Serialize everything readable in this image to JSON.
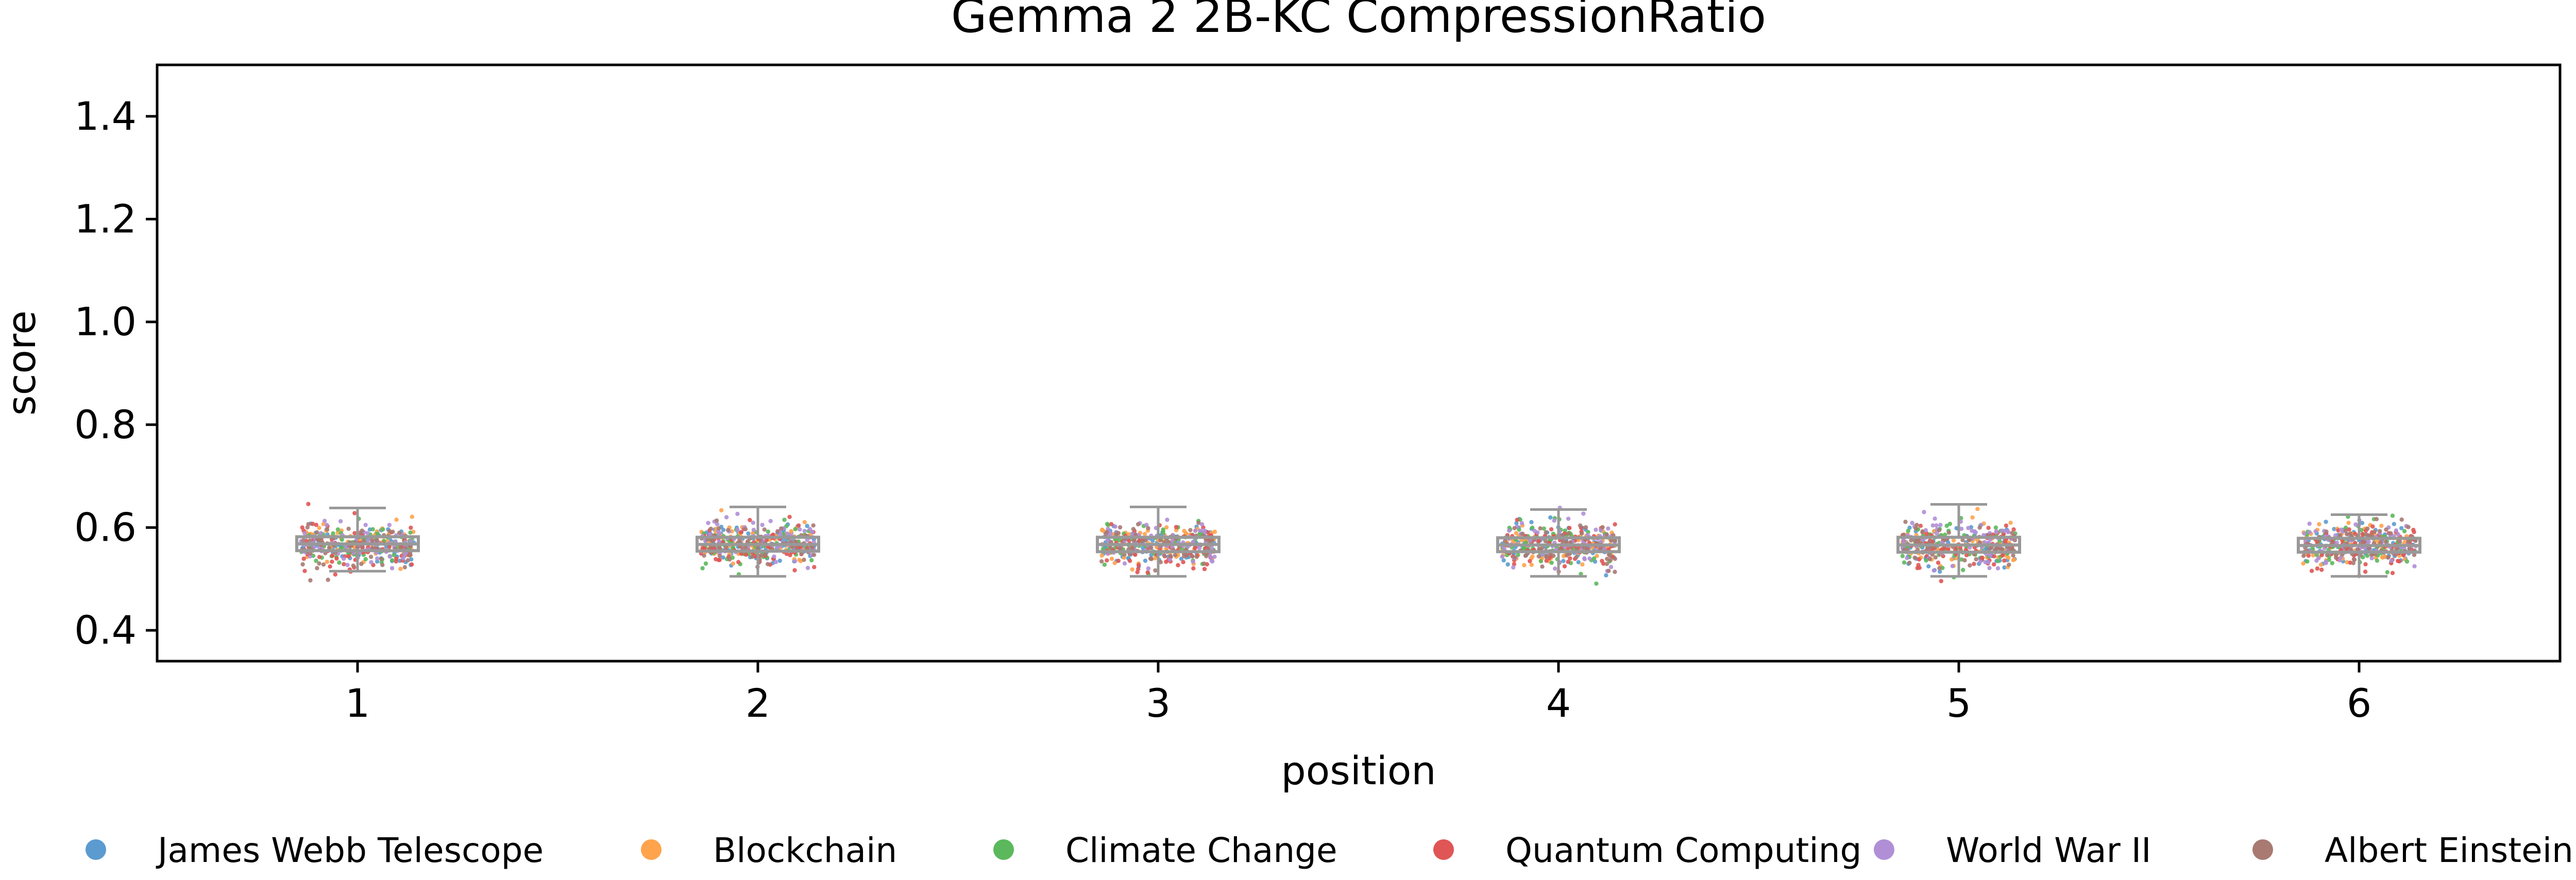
{
  "chart_data": {
    "type": "box-strip",
    "title": "Gemma 2 2B-KC CompressionRatio",
    "xlabel": "position",
    "ylabel": "score",
    "ylim": [
      0.34,
      1.5
    ],
    "yticks": [
      "0.4",
      "0.6",
      "0.8",
      "1.0",
      "1.2",
      "1.4"
    ],
    "categories": [
      "1",
      "2",
      "3",
      "4",
      "5",
      "6"
    ],
    "legend_position": "bottom",
    "grid": false,
    "box_color": "#999999",
    "boxes": [
      {
        "category": "1",
        "q1": 0.555,
        "median": 0.568,
        "q3": 0.582,
        "whisker_low": 0.515,
        "whisker_high": 0.638
      },
      {
        "category": "2",
        "q1": 0.554,
        "median": 0.567,
        "q3": 0.581,
        "whisker_low": 0.505,
        "whisker_high": 0.64
      },
      {
        "category": "3",
        "q1": 0.553,
        "median": 0.567,
        "q3": 0.581,
        "whisker_low": 0.505,
        "whisker_high": 0.64
      },
      {
        "category": "4",
        "q1": 0.553,
        "median": 0.566,
        "q3": 0.58,
        "whisker_low": 0.505,
        "whisker_high": 0.635
      },
      {
        "category": "5",
        "q1": 0.552,
        "median": 0.566,
        "q3": 0.581,
        "whisker_low": 0.505,
        "whisker_high": 0.645
      },
      {
        "category": "6",
        "q1": 0.552,
        "median": 0.565,
        "q3": 0.579,
        "whisker_low": 0.505,
        "whisker_high": 0.625
      }
    ],
    "series": [
      {
        "name": "James Webb Telescope",
        "color": "#5b9bd0",
        "mean": 0.567,
        "sd": 0.02
      },
      {
        "name": "Blockchain",
        "color": "#ffa34d",
        "mean": 0.568,
        "sd": 0.02
      },
      {
        "name": "Climate Change",
        "color": "#5cb85c",
        "mean": 0.566,
        "sd": 0.02
      },
      {
        "name": "Quantum Computing",
        "color": "#e05555",
        "mean": 0.562,
        "sd": 0.022
      },
      {
        "name": "World War II",
        "color": "#b08fd6",
        "mean": 0.57,
        "sd": 0.021
      },
      {
        "name": "Albert Einstein",
        "color": "#a87a72",
        "mean": 0.565,
        "sd": 0.02
      }
    ]
  }
}
